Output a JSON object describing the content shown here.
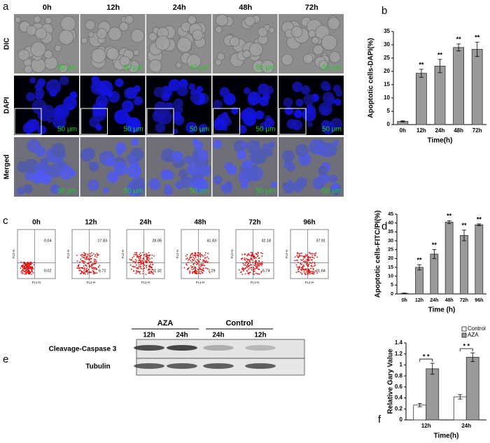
{
  "panel_labels": [
    "a",
    "b",
    "c",
    "d",
    "e",
    "f"
  ],
  "microscopy": {
    "times": [
      "0h",
      "12h",
      "24h",
      "48h",
      "72h"
    ],
    "rows": [
      "DIC",
      "DAPI",
      "Merged"
    ],
    "scale_bar": "50 μm"
  },
  "flow": {
    "times": [
      "0h",
      "12h",
      "24h",
      "48h",
      "72h",
      "96h"
    ],
    "upper_right": [
      0.04,
      17.83,
      28.05,
      41.83,
      32.18,
      37.91
    ],
    "lower_right": [
      0.02,
      6.72,
      11.32,
      7.29,
      5.74,
      11.64
    ],
    "y_axis_label": "FL2-H",
    "x_axis_label": "FL1-H"
  },
  "western_blot": {
    "groups": [
      "AZA",
      "Control"
    ],
    "lanes": [
      "12h",
      "24h",
      "24h",
      "12h"
    ],
    "rows": [
      "Cleavage-Caspase 3",
      "Tubulin"
    ]
  },
  "chart_data": [
    {
      "type": "bar",
      "y_label": "Apoptotic cells-DAPI(%)",
      "x_label": "Time(h)",
      "categories": [
        "0h",
        "12h",
        "24h",
        "48h",
        "72h"
      ],
      "values": [
        1.2,
        19.3,
        22,
        29,
        28.3
      ],
      "errors": [
        0.2,
        1.5,
        2.5,
        1.3,
        2.7
      ],
      "color": "#9a9a9a",
      "markers": [
        null,
        "**",
        "**",
        "**",
        "**"
      ],
      "ylim": [
        0,
        35
      ],
      "yticks": [
        0,
        5,
        10,
        15,
        20,
        25,
        30,
        35
      ]
    },
    {
      "type": "bar",
      "y_label": "Apoptotic cells-FITC/PI(%)",
      "x_label": "Time (h)",
      "categories": [
        "0h",
        "12h",
        "24h",
        "48h",
        "72h",
        "96h"
      ],
      "values": [
        0.3,
        15,
        22.5,
        40.5,
        33,
        39
      ],
      "errors": [
        0.2,
        1.5,
        2.5,
        0.8,
        3,
        0.5
      ],
      "color": "#9a9a9a",
      "markers": [
        null,
        "**",
        "**",
        "**",
        "**",
        "**"
      ],
      "ylim": [
        0,
        45
      ],
      "yticks": [
        0,
        5,
        10,
        15,
        20,
        25,
        30,
        35,
        40,
        45
      ]
    },
    {
      "type": "bar",
      "y_label": "Relative Gary Value",
      "x_label": "Time(h)",
      "categories": [
        "12h",
        "24h"
      ],
      "series": [
        {
          "name": "Control",
          "color": "#ffffff",
          "values": [
            0.27,
            0.42
          ],
          "errors": [
            0.03,
            0.04
          ]
        },
        {
          "name": "AZA",
          "color": "#9a9a9a",
          "values": [
            0.93,
            1.14
          ],
          "errors": [
            0.1,
            0.08
          ]
        }
      ],
      "significance": [
        "* *",
        "* *"
      ],
      "ylim": [
        0,
        1.4
      ],
      "yticks": [
        0,
        0.2,
        0.4,
        0.6,
        0.8,
        1,
        1.2,
        1.4
      ],
      "legend": "upper right"
    }
  ]
}
